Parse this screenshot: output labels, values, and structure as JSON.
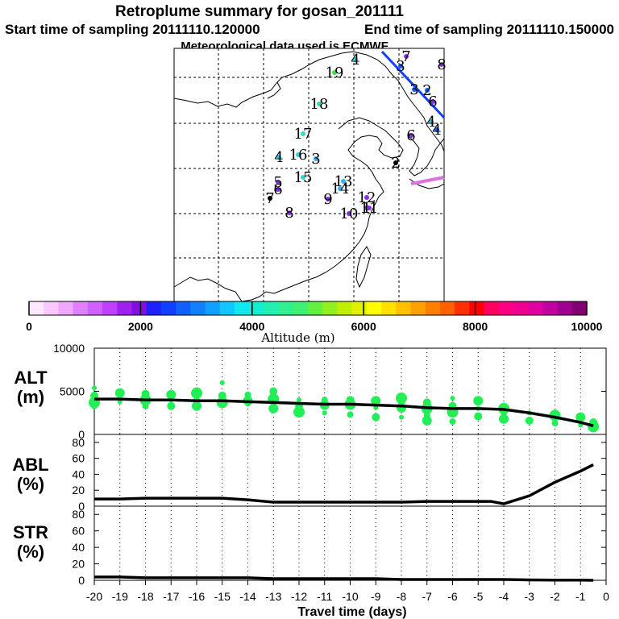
{
  "title": {
    "line1": "Retroplume summary for gosan_201111",
    "start": "Start time of sampling 20111110.120000",
    "end": "End time of sampling 20111110.150000",
    "met": "Meteorological data used is ECMWF"
  },
  "colorbar": {
    "label": "Altitude (m)",
    "ticks": [
      "0",
      "2000",
      "4000",
      "6000",
      "8000",
      "10000"
    ],
    "colors": [
      "#ffe8ff",
      "#f8c8ff",
      "#f0a8ff",
      "#e080ff",
      "#d060ff",
      "#c040ff",
      "#a020f0",
      "#8010e0",
      "#2020ff",
      "#1040ff",
      "#1060ff",
      "#1080ff",
      "#10a0ff",
      "#10c8ff",
      "#10e8f0",
      "#10f0d0",
      "#20f0b0",
      "#30f090",
      "#40f070",
      "#60f040",
      "#90f020",
      "#c0f000",
      "#e0f000",
      "#ffff00",
      "#ffe000",
      "#ffc000",
      "#ffa000",
      "#ff8000",
      "#ff6000",
      "#ff3000",
      "#ff0000",
      "#ff0060",
      "#ff0080",
      "#f00090",
      "#e000a0",
      "#c000a0",
      "#a00090",
      "#800070"
    ]
  },
  "map": {
    "markers": [
      {
        "label": "1",
        "color": "#9030e0"
      },
      {
        "label": "2",
        "color": "#000000"
      },
      {
        "label": "3",
        "color": "#30b0f0"
      },
      {
        "label": "4",
        "color": "#30c0f0"
      },
      {
        "label": "5",
        "color": "#8030e0"
      },
      {
        "label": "6",
        "color": "#8030e0"
      },
      {
        "label": "7",
        "color": "#000000"
      },
      {
        "label": "8",
        "color": "#8030e0"
      },
      {
        "label": "9",
        "color": "#8030e0"
      },
      {
        "label": "10",
        "color": "#8030e0"
      },
      {
        "label": "11",
        "color": "#8030e0"
      },
      {
        "label": "12",
        "color": "#8030e0"
      },
      {
        "label": "13",
        "color": "#30b0f0"
      },
      {
        "label": "14",
        "color": "#30b0f0"
      },
      {
        "label": "15",
        "color": "#30d0e0"
      },
      {
        "label": "16",
        "color": "#30d0e0"
      },
      {
        "label": "17",
        "color": "#30e0c0"
      },
      {
        "label": "18",
        "color": "#30e0a0"
      },
      {
        "label": "19",
        "color": "#40e040"
      },
      {
        "label": "4",
        "color": "#30d0e0"
      },
      {
        "label": "4",
        "color": "#30c0e0"
      },
      {
        "label": "3",
        "color": "#1060ff"
      },
      {
        "label": "3",
        "color": "#1060ff"
      },
      {
        "label": "2",
        "color": "#1060ff"
      },
      {
        "label": "6",
        "color": "#8030e0"
      },
      {
        "label": "7",
        "color": "#8030e0"
      },
      {
        "label": "6",
        "color": "#8030e0"
      },
      {
        "label": "8",
        "color": "#8030e0"
      },
      {
        "label": "4",
        "color": "#1060ff"
      }
    ]
  },
  "chart_data": [
    {
      "type": "scatter",
      "panel": "ALT",
      "ylabel": "ALT\n(m)",
      "ylabel_lines": [
        "ALT",
        "(m)"
      ],
      "ylim": [
        0,
        10000
      ],
      "yticks": [
        "10000",
        "5000",
        "0"
      ],
      "xlim": [
        -20,
        -0.5
      ],
      "line": {
        "x": [
          -20,
          -19,
          -18,
          -17,
          -16,
          -15,
          -14,
          -13,
          -12,
          -11,
          -10,
          -9,
          -8,
          -7,
          -6,
          -5,
          -4,
          -3,
          -2,
          -1,
          -0.5
        ],
        "y": [
          4100,
          4100,
          4000,
          4000,
          3900,
          3900,
          3800,
          3700,
          3600,
          3500,
          3500,
          3400,
          3300,
          3100,
          3000,
          3000,
          2900,
          2500,
          2000,
          1400,
          1000
        ]
      },
      "points": [
        [
          -20,
          5400
        ],
        [
          -20,
          4500
        ],
        [
          -20,
          3700
        ],
        [
          -20,
          3300
        ],
        [
          -19,
          4800
        ],
        [
          -19,
          3800
        ],
        [
          -18,
          4700
        ],
        [
          -18,
          4000
        ],
        [
          -18,
          3300
        ],
        [
          -17,
          4600
        ],
        [
          -17,
          4000
        ],
        [
          -17,
          3300
        ],
        [
          -16,
          4800
        ],
        [
          -16,
          4000
        ],
        [
          -16,
          3300
        ],
        [
          -15,
          6000
        ],
        [
          -15,
          4500
        ],
        [
          -15,
          3700
        ],
        [
          -14,
          4600
        ],
        [
          -14,
          3900
        ],
        [
          -14,
          3500
        ],
        [
          -13,
          5000
        ],
        [
          -13,
          4100
        ],
        [
          -13,
          3700
        ],
        [
          -13,
          3000
        ],
        [
          -12,
          4000
        ],
        [
          -12,
          3300
        ],
        [
          -12,
          2600
        ],
        [
          -11,
          4000
        ],
        [
          -11,
          3400
        ],
        [
          -11,
          2500
        ],
        [
          -10,
          4000
        ],
        [
          -10,
          3500
        ],
        [
          -10,
          2300
        ],
        [
          -9,
          3900
        ],
        [
          -9,
          3100
        ],
        [
          -9,
          2000
        ],
        [
          -8,
          4200
        ],
        [
          -8,
          3700
        ],
        [
          -8,
          3100
        ],
        [
          -8,
          2000
        ],
        [
          -7,
          3700
        ],
        [
          -7,
          3000
        ],
        [
          -7,
          2200
        ],
        [
          -7,
          1600
        ],
        [
          -6,
          4200
        ],
        [
          -6,
          3300
        ],
        [
          -6,
          2600
        ],
        [
          -6,
          1500
        ],
        [
          -5,
          3900
        ],
        [
          -5,
          3000
        ],
        [
          -5,
          2100
        ],
        [
          -4,
          3000
        ],
        [
          -4,
          2500
        ],
        [
          -4,
          1800
        ],
        [
          -3,
          2500
        ],
        [
          -3,
          1600
        ],
        [
          -2,
          2200
        ],
        [
          -2,
          1300
        ],
        [
          -1,
          2000
        ],
        [
          -1,
          1100
        ],
        [
          -0.5,
          1400
        ],
        [
          -0.5,
          900
        ]
      ]
    },
    {
      "type": "line",
      "panel": "ABL",
      "ylabel_lines": [
        "ABL",
        "(%)"
      ],
      "ylim": [
        0,
        90
      ],
      "yticks": [
        "80",
        "60",
        "40",
        "20",
        "0"
      ],
      "x": [
        -20,
        -19,
        -18,
        -17,
        -16,
        -15,
        -14,
        -13,
        -12,
        -11,
        -10,
        -9,
        -8,
        -7,
        -6,
        -5,
        -4.5,
        -4,
        -3,
        -2,
        -1,
        -0.5
      ],
      "y": [
        9,
        9,
        10,
        10,
        10,
        10,
        8,
        5,
        5,
        5,
        5,
        5,
        5,
        6,
        6,
        6,
        6,
        3,
        13,
        30,
        44,
        52
      ]
    },
    {
      "type": "line",
      "panel": "STR",
      "ylabel_lines": [
        "STR",
        "(%)"
      ],
      "ylim": [
        0,
        90
      ],
      "yticks": [
        "80",
        "60",
        "40",
        "20",
        "0"
      ],
      "x": [
        -20,
        -19,
        -18,
        -17,
        -16,
        -15,
        -14,
        -13,
        -12,
        -11,
        -10,
        -9,
        -8,
        -7,
        -6,
        -5,
        -4,
        -3,
        -2,
        -1,
        -0.5
      ],
      "y": [
        4,
        4,
        3,
        3,
        3,
        3,
        3,
        2,
        2,
        2,
        2,
        2,
        1,
        1,
        1,
        1,
        1,
        0.5,
        0.3,
        0.2,
        0
      ]
    }
  ],
  "xaxis": {
    "label": "Travel time (days)",
    "ticks": [
      "-20",
      "-19",
      "-18",
      "-17",
      "-16",
      "-15",
      "-14",
      "-13",
      "-12",
      "-11",
      "-10",
      "-9",
      "-8",
      "-7",
      "-6",
      "-5",
      "-4",
      "-3",
      "-2",
      "-1",
      "0"
    ],
    "tick_values": [
      -20,
      -19,
      -18,
      -17,
      -16,
      -15,
      -14,
      -13,
      -12,
      -11,
      -10,
      -9,
      -8,
      -7,
      -6,
      -5,
      -4,
      -3,
      -2,
      -1,
      0
    ]
  },
  "style": {
    "point_color": "#22ee55",
    "line_color": "#000000",
    "grid": true
  }
}
